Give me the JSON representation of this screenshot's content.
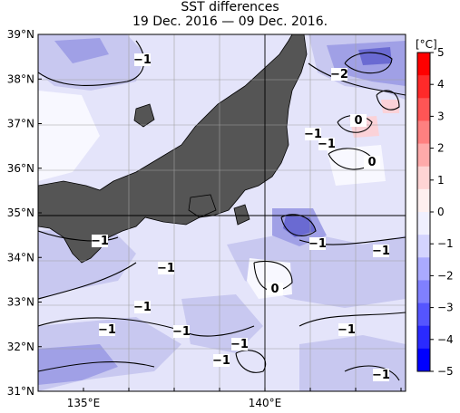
{
  "title": "SST differences",
  "subtitle": "19 Dec. 2016 — 09 Dec. 2016.",
  "lat_labels": [
    "39°N",
    "38°N",
    "37°N",
    "36°N",
    "35°N",
    "34°N",
    "33°N",
    "32°N",
    "31°N"
  ],
  "lon_labels": [
    "135°E",
    "140°E"
  ],
  "colorbar": {
    "unit": "[°C]",
    "ticks": [
      "5",
      "4",
      "3",
      "2",
      "1",
      "0",
      "−1",
      "−2",
      "−3",
      "−4",
      "−5"
    ],
    "colors": [
      "#ff0000",
      "#ff2a2a",
      "#ff5555",
      "#ff8080",
      "#ffaaaa",
      "#ffd4d4",
      "#fff0f0",
      "#f0f0ff",
      "#d4d4ff",
      "#aaaaff",
      "#8080ff",
      "#5555ff",
      "#2a2aff",
      "#0000ff"
    ]
  },
  "colors": {
    "land": "#555555",
    "ocean_base": "#e4e4fa",
    "neutral": "#f8f8ff",
    "light_blue": "#c8c8f0",
    "mid_blue": "#a0a0e6",
    "dark_blue": "#6a6ad2",
    "light_red": "#fbd2d8"
  },
  "contour_labels": [
    "−1",
    "−1",
    "−2",
    "0",
    "−1",
    "−1",
    "0",
    "0",
    "−1",
    "−1",
    "−1",
    "−1",
    "−1",
    "−1",
    "−1",
    "−1",
    "−1",
    "−1"
  ]
}
